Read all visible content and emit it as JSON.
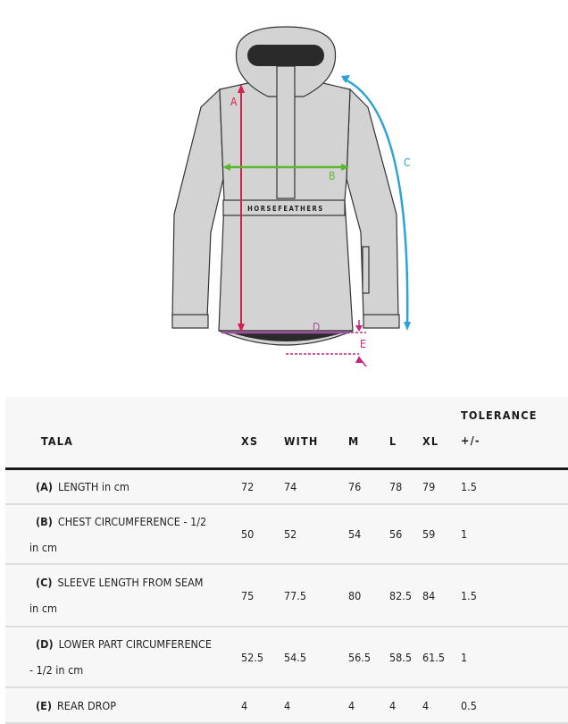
{
  "figure": {
    "brand": "HORSEFEATHERS",
    "labels": [
      "A",
      "B",
      "C",
      "D",
      "E"
    ],
    "colors": {
      "A": "#d4204c",
      "B": "#5cb82e",
      "C": "#2ba3d6",
      "D": "#a24ea0",
      "E": "#c8237a",
      "jacket": "#d3d3d3",
      "outline": "#333333"
    }
  },
  "table": {
    "headers": [
      "TALA",
      "XS",
      "WITH",
      "M",
      "L",
      "XL",
      "TOLERANCE",
      "+/-"
    ],
    "rows": [
      {
        "code": "(A)",
        "label": "LENGTH in cm",
        "cont": "",
        "values": [
          "72",
          "74",
          "76",
          "78",
          "79",
          "1.5"
        ]
      },
      {
        "code": "(B)",
        "label": "CHEST CIRCUMFERENCE - 1/2",
        "cont": "in cm",
        "values": [
          "50",
          "52",
          "54",
          "56",
          "59",
          "1"
        ]
      },
      {
        "code": "(C)",
        "label": "SLEEVE LENGTH FROM SEAM",
        "cont": "in cm",
        "values": [
          "75",
          "77.5",
          "80",
          "82.5",
          "84",
          "1.5"
        ]
      },
      {
        "code": "(D)",
        "label": "LOWER PART CIRCUMFERENCE",
        "cont": "- 1/2 in cm",
        "values": [
          "52.5",
          "54.5",
          "56.5",
          "58.5",
          "61.5",
          "1"
        ]
      },
      {
        "code": "(E)",
        "label": "REAR DROP",
        "cont": "",
        "values": [
          "4",
          "4",
          "4",
          "4",
          "4",
          "0.5"
        ]
      }
    ]
  }
}
